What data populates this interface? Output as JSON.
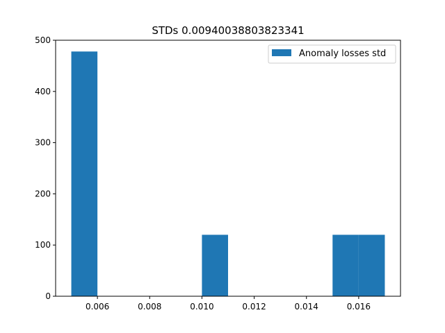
{
  "chart_data": {
    "type": "bar",
    "title": "STDs 0.00940038803823341",
    "xlabel": "",
    "ylabel": "",
    "xlim": [
      0.0044,
      0.0176
    ],
    "ylim": [
      0,
      500
    ],
    "xticks": [
      0.006,
      0.008,
      0.01,
      0.012,
      0.014,
      0.016
    ],
    "xtick_labels": [
      "0.006",
      "0.008",
      "0.010",
      "0.012",
      "0.014",
      "0.016"
    ],
    "yticks": [
      0,
      100,
      200,
      300,
      400,
      500
    ],
    "ytick_labels": [
      "0",
      "100",
      "200",
      "300",
      "400",
      "500"
    ],
    "grid": false,
    "legend_position": "top-right",
    "series": [
      {
        "name": "Anomaly losses std",
        "color": "#1f77b4",
        "bins": [
          {
            "x0": 0.005,
            "x1": 0.006,
            "value": 478
          },
          {
            "x0": 0.006,
            "x1": 0.007,
            "value": 0
          },
          {
            "x0": 0.007,
            "x1": 0.008,
            "value": 0
          },
          {
            "x0": 0.008,
            "x1": 0.009,
            "value": 0
          },
          {
            "x0": 0.009,
            "x1": 0.01,
            "value": 0
          },
          {
            "x0": 0.01,
            "x1": 0.011,
            "value": 120
          },
          {
            "x0": 0.011,
            "x1": 0.012,
            "value": 0
          },
          {
            "x0": 0.012,
            "x1": 0.013,
            "value": 0
          },
          {
            "x0": 0.013,
            "x1": 0.014,
            "value": 0
          },
          {
            "x0": 0.014,
            "x1": 0.015,
            "value": 0
          },
          {
            "x0": 0.015,
            "x1": 0.016,
            "value": 120
          },
          {
            "x0": 0.016,
            "x1": 0.017,
            "value": 120
          }
        ]
      }
    ]
  }
}
